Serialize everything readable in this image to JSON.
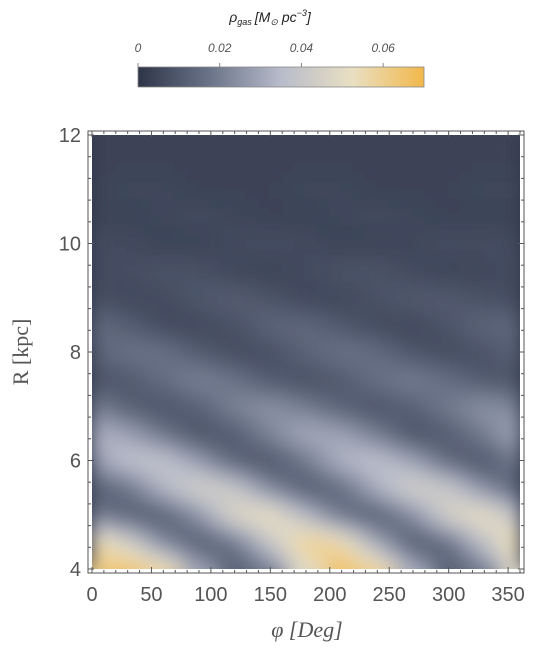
{
  "chart_data": {
    "type": "heatmap",
    "title": "",
    "xlabel": "φ [Deg]",
    "ylabel": "R [kpc]",
    "xlim": [
      0,
      360
    ],
    "ylim": [
      4,
      12
    ],
    "x_ticks": [
      "0",
      "50",
      "100",
      "150",
      "200",
      "250",
      "300",
      "350"
    ],
    "y_ticks": [
      "4",
      "6",
      "8",
      "10",
      "12"
    ],
    "colorbar": {
      "title_parts": {
        "rho": "ρ",
        "sub": "gas",
        "bracket_open": "[M",
        "sun": "⊙",
        "unit": "pc",
        "exp": "−3",
        "bracket_close": "]"
      },
      "range": [
        0,
        0.07
      ],
      "ticks": [
        "0",
        "0.02",
        "0.04",
        "0.06"
      ],
      "colors": [
        "#2e3549",
        "#6a7388",
        "#b8bccb",
        "#e9dfc2",
        "#f2b84a"
      ]
    },
    "description_of_field": "two-armed logarithmic spiral density pattern; density increases toward small R",
    "rows_R": [
      4.0,
      4.5,
      5.0,
      5.5,
      6.0,
      6.5,
      7.0,
      7.5,
      8.0,
      8.5,
      9.0,
      9.5,
      10.0,
      10.5,
      11.0,
      11.5,
      12.0
    ],
    "cols_phi": [
      0,
      30,
      60,
      90,
      120,
      150,
      180,
      210,
      240,
      270,
      300,
      330,
      360
    ],
    "values": [
      [
        0.062,
        0.066,
        0.058,
        0.03,
        0.012,
        0.018,
        0.048,
        0.066,
        0.06,
        0.032,
        0.012,
        0.018,
        0.05
      ],
      [
        0.058,
        0.046,
        0.022,
        0.01,
        0.016,
        0.04,
        0.062,
        0.058,
        0.03,
        0.01,
        0.014,
        0.038,
        0.06
      ],
      [
        0.02,
        0.012,
        0.01,
        0.024,
        0.048,
        0.055,
        0.036,
        0.016,
        0.01,
        0.022,
        0.046,
        0.054,
        0.038
      ],
      [
        0.01,
        0.016,
        0.034,
        0.046,
        0.042,
        0.022,
        0.01,
        0.014,
        0.032,
        0.046,
        0.042,
        0.024,
        0.01
      ],
      [
        0.026,
        0.038,
        0.04,
        0.028,
        0.012,
        0.008,
        0.018,
        0.034,
        0.038,
        0.03,
        0.014,
        0.008,
        0.02
      ],
      [
        0.034,
        0.03,
        0.018,
        0.008,
        0.01,
        0.022,
        0.032,
        0.03,
        0.02,
        0.008,
        0.01,
        0.02,
        0.032
      ],
      [
        0.022,
        0.012,
        0.008,
        0.012,
        0.022,
        0.026,
        0.02,
        0.012,
        0.008,
        0.012,
        0.02,
        0.026,
        0.022
      ],
      [
        0.008,
        0.009,
        0.016,
        0.022,
        0.018,
        0.01,
        0.007,
        0.01,
        0.017,
        0.021,
        0.016,
        0.01,
        0.008
      ],
      [
        0.012,
        0.018,
        0.018,
        0.011,
        0.006,
        0.007,
        0.013,
        0.018,
        0.016,
        0.009,
        0.006,
        0.008,
        0.013
      ],
      [
        0.016,
        0.012,
        0.006,
        0.005,
        0.008,
        0.014,
        0.015,
        0.01,
        0.006,
        0.005,
        0.009,
        0.014,
        0.015
      ],
      [
        0.008,
        0.005,
        0.006,
        0.01,
        0.012,
        0.009,
        0.005,
        0.005,
        0.008,
        0.011,
        0.011,
        0.008,
        0.006
      ],
      [
        0.006,
        0.007,
        0.009,
        0.008,
        0.005,
        0.004,
        0.006,
        0.009,
        0.009,
        0.006,
        0.004,
        0.005,
        0.007
      ],
      [
        0.007,
        0.006,
        0.004,
        0.004,
        0.006,
        0.007,
        0.006,
        0.004,
        0.004,
        0.005,
        0.007,
        0.007,
        0.006
      ],
      [
        0.004,
        0.004,
        0.005,
        0.006,
        0.005,
        0.004,
        0.004,
        0.005,
        0.006,
        0.005,
        0.004,
        0.004,
        0.004
      ],
      [
        0.004,
        0.005,
        0.005,
        0.004,
        0.004,
        0.004,
        0.005,
        0.005,
        0.004,
        0.004,
        0.004,
        0.005,
        0.005
      ],
      [
        0.004,
        0.004,
        0.004,
        0.004,
        0.004,
        0.004,
        0.004,
        0.004,
        0.004,
        0.004,
        0.004,
        0.004,
        0.004
      ],
      [
        0.004,
        0.004,
        0.004,
        0.004,
        0.004,
        0.004,
        0.004,
        0.004,
        0.004,
        0.004,
        0.004,
        0.004,
        0.004
      ]
    ]
  }
}
